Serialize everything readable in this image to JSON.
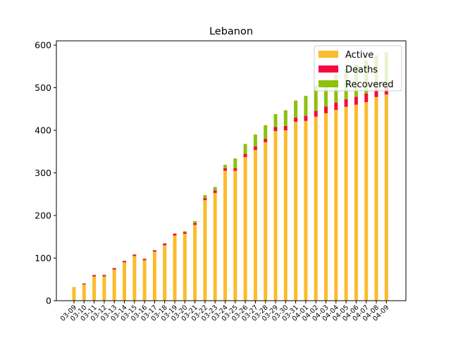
{
  "chart_data": {
    "type": "bar",
    "stacked": true,
    "title": "Lebanon",
    "xlabel": "",
    "ylabel": "",
    "ylim": [
      0,
      610
    ],
    "yticks": [
      0,
      100,
      200,
      300,
      400,
      500,
      600
    ],
    "legend_position": "top-right",
    "grid": false,
    "categories": [
      "03-09",
      "03-10",
      "03-11",
      "03-12",
      "03-13",
      "03-14",
      "03-15",
      "03-16",
      "03-17",
      "03-18",
      "03-19",
      "03-20",
      "03-21",
      "03-22",
      "03-23",
      "03-24",
      "03-25",
      "03-26",
      "03-27",
      "03-28",
      "03-29",
      "03-30",
      "03-31",
      "04-01",
      "04-02",
      "04-03",
      "04-04",
      "04-05",
      "04-06",
      "04-07",
      "04-08",
      "04-09"
    ],
    "series": [
      {
        "name": "Active",
        "color": "#fbbc2c",
        "values": [
          32,
          38,
          57,
          57,
          73,
          90,
          105,
          95,
          115,
          130,
          153,
          157,
          178,
          236,
          253,
          305,
          305,
          337,
          354,
          372,
          398,
          400,
          420,
          422,
          432,
          440,
          448,
          455,
          460,
          466,
          478,
          484
        ]
      },
      {
        "name": "Deaths",
        "color": "#f40a40",
        "values": [
          0,
          2,
          3,
          3,
          3,
          3,
          3,
          3,
          3,
          4,
          4,
          4,
          4,
          5,
          6,
          6,
          6,
          8,
          8,
          8,
          10,
          10,
          10,
          12,
          14,
          16,
          17,
          18,
          19,
          20,
          20,
          21
        ]
      },
      {
        "name": "Recovered",
        "color": "#8bc10f",
        "values": [
          0,
          1,
          1,
          1,
          1,
          1,
          1,
          1,
          1,
          1,
          1,
          2,
          5,
          7,
          8,
          8,
          23,
          23,
          28,
          32,
          30,
          37,
          40,
          47,
          60,
          62,
          66,
          70,
          75,
          78,
          78,
          78
        ]
      }
    ]
  }
}
